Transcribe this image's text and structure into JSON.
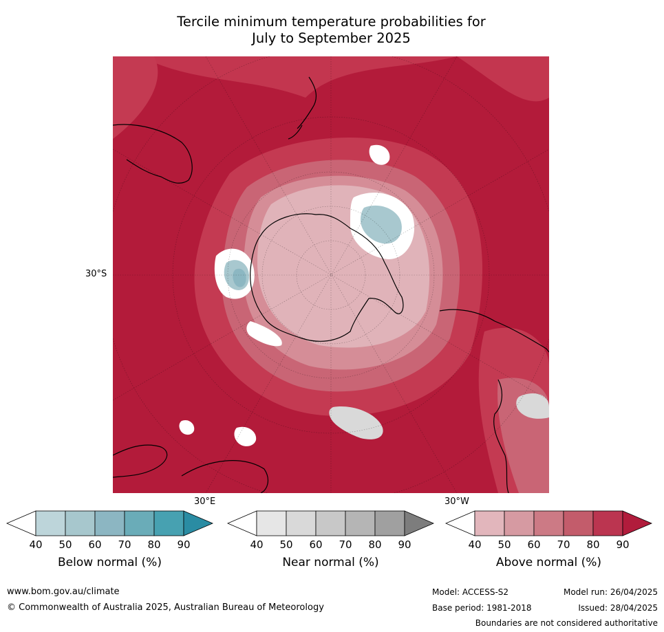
{
  "title_line1": "Tercile minimum temperature probabilities for",
  "title_line2": "July to September 2025",
  "map": {
    "lat_label": "30°S",
    "lon_label_east": "30°E",
    "lon_label_west": "30°W",
    "colors": {
      "above_90": "#b31b3a",
      "above_80": "#c43a52",
      "above_70": "#c96575",
      "above_60": "#d58d97",
      "above_50": "#e0b3b9",
      "below_50": "#a8c8cf",
      "below_60": "#8cb7c2",
      "near_50": "#d9d9d9",
      "near_60": "#c9c9c9",
      "white": "#ffffff",
      "coast": "#000000"
    }
  },
  "colorbars": [
    {
      "label": "Below normal (%)",
      "ticks": [
        "40",
        "50",
        "60",
        "70",
        "80",
        "90"
      ],
      "colors": [
        "#ffffff",
        "#bdd5da",
        "#a7c7cd",
        "#8cb6c2",
        "#6aacb8",
        "#47a1b1",
        "#2a8ca3"
      ]
    },
    {
      "label": "Near normal (%)",
      "ticks": [
        "40",
        "50",
        "60",
        "70",
        "80",
        "90"
      ],
      "colors": [
        "#ffffff",
        "#e6e6e6",
        "#d9d9d9",
        "#c8c8c8",
        "#b5b5b5",
        "#a0a0a0",
        "#7d7d7d"
      ]
    },
    {
      "label": "Above normal (%)",
      "ticks": [
        "40",
        "50",
        "60",
        "70",
        "80",
        "90"
      ],
      "colors": [
        "#ffffff",
        "#e2b6bc",
        "#d69aa2",
        "#cc7a85",
        "#c35c6b",
        "#bb3550",
        "#b11c3c"
      ]
    }
  ],
  "footer": {
    "website": "www.bom.gov.au/climate",
    "copyright": "© Commonwealth of Australia 2025, Australian Bureau of Meteorology",
    "model": "Model: ACCESS-S2",
    "model_run": "Model run: 26/04/2025",
    "base_period": "Base period: 1981-2018",
    "issued": "Issued: 28/04/2025",
    "disclaimer": "Boundaries are not considered authoritative"
  }
}
